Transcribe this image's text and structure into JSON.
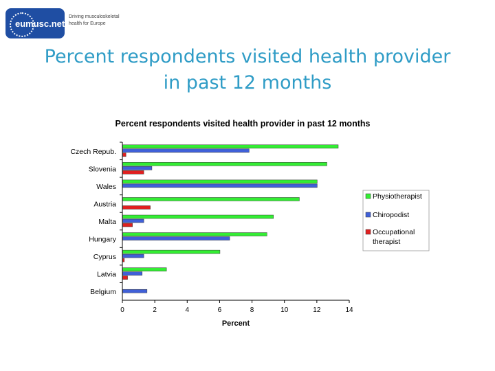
{
  "logo": {
    "name": "eumusc.net",
    "tagline_line1": "Driving musculoskeletal",
    "tagline_line2": "health for Europe"
  },
  "slide_title": {
    "line1": "Percent respondents visited health provider",
    "line2": "in past 12 months"
  },
  "colors": {
    "title": "#2f9cc6",
    "logo": "#1f4ea3",
    "physiotherapist": "#33ee33",
    "chiropodist": "#4060d8",
    "occupational_therapist": "#e02020"
  },
  "chart_data": {
    "type": "bar",
    "orientation": "horizontal",
    "title": "Percent respondents visited health provider in past 12 months",
    "xlabel": "Percent",
    "ylabel": "",
    "xlim": [
      0,
      14
    ],
    "xticks": [
      "0",
      "2",
      "4",
      "6",
      "8",
      "10",
      "12",
      "14"
    ],
    "grid": false,
    "legend_position": "right",
    "categories": [
      "Czech Repub.",
      "Slovenia",
      "Wales",
      "Austria",
      "Malta",
      "Hungary",
      "Cyprus",
      "Latvia",
      "Belgium"
    ],
    "series": [
      {
        "name": "Physiotherapist",
        "color": "#33ee33",
        "values": [
          13.3,
          12.6,
          12.0,
          10.9,
          9.3,
          8.9,
          6.0,
          2.7,
          null
        ]
      },
      {
        "name": "Chiropodist",
        "color": "#4060d8",
        "values": [
          7.8,
          1.8,
          12.0,
          null,
          1.3,
          6.6,
          1.3,
          1.2,
          1.5
        ]
      },
      {
        "name": "Occupational therapist",
        "color": "#e02020",
        "values": [
          0.2,
          1.3,
          null,
          1.7,
          0.6,
          null,
          0.1,
          0.3,
          null
        ]
      }
    ]
  }
}
